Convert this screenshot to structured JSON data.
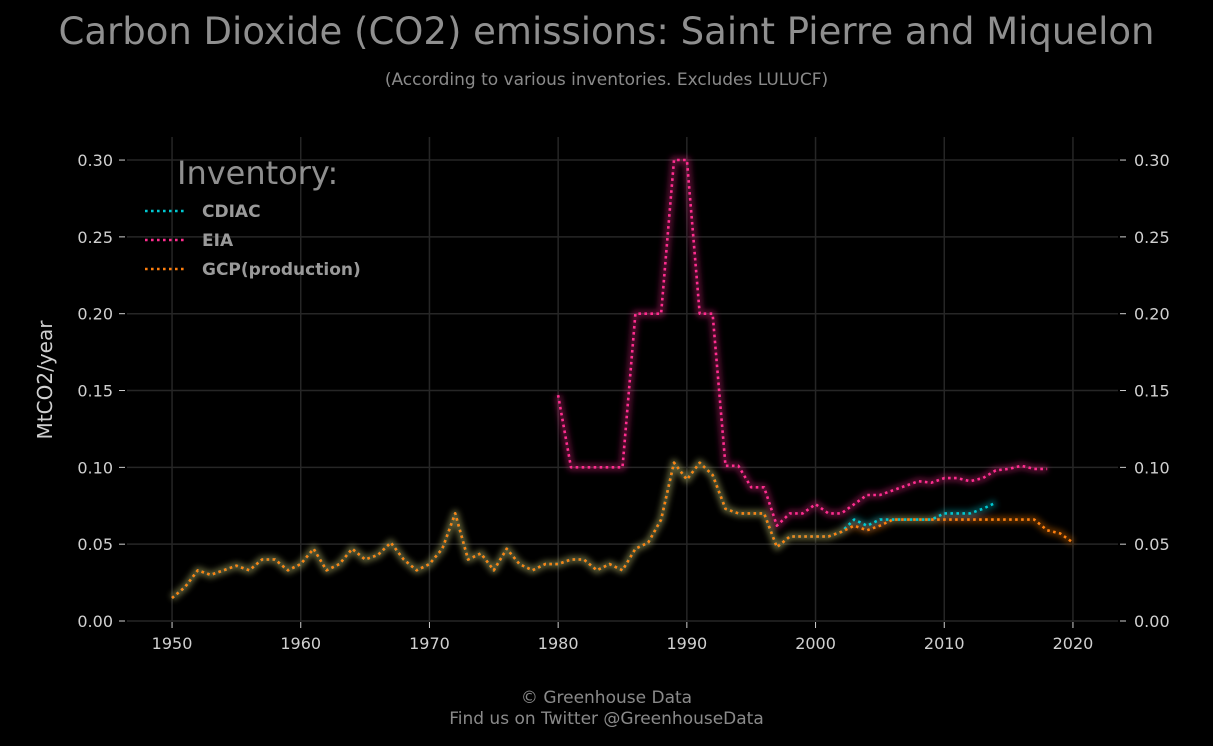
{
  "title": "Carbon Dioxide (CO2) emissions: Saint Pierre and Miquelon",
  "subtitle": "(According to various inventories. Excludes LULUCF)",
  "footer": {
    "line1": "© Greenhouse Data",
    "line2": "Find us on Twitter @GreenhouseData"
  },
  "colors": {
    "background": "#000000",
    "grid": "#262626",
    "text": "#d0d0d0",
    "muted": "#8a8a8a"
  },
  "chart_data": {
    "type": "line",
    "ylabel": "MtCO2/year",
    "xlabel": "",
    "xlim": [
      1946.5,
      2023.5
    ],
    "ylim": [
      0,
      0.315
    ],
    "xticks": [
      1950,
      1960,
      1970,
      1980,
      1990,
      2000,
      2010,
      2020
    ],
    "yticks": [
      0.0,
      0.05,
      0.1,
      0.15,
      0.2,
      0.25,
      0.3
    ],
    "ytick_labels": [
      "0.00",
      "0.05",
      "0.10",
      "0.15",
      "0.20",
      "0.25",
      "0.30"
    ],
    "grid": true,
    "legend": {
      "title": "Inventory:",
      "position": "top-left"
    },
    "series": [
      {
        "name": "CDIAC",
        "color": "#00c8d2",
        "x": [
          1950,
          1951,
          1952,
          1953,
          1954,
          1955,
          1956,
          1957,
          1958,
          1959,
          1960,
          1961,
          1962,
          1963,
          1964,
          1965,
          1966,
          1967,
          1968,
          1969,
          1970,
          1971,
          1972,
          1973,
          1974,
          1975,
          1976,
          1977,
          1978,
          1979,
          1980,
          1981,
          1982,
          1983,
          1984,
          1985,
          1986,
          1987,
          1988,
          1989,
          1990,
          1991,
          1992,
          1993,
          1994,
          1995,
          1996,
          1997,
          1998,
          1999,
          2000,
          2001,
          2002,
          2003,
          2004,
          2005,
          2006,
          2007,
          2008,
          2009,
          2010,
          2011,
          2012,
          2013,
          2014
        ],
        "y": [
          0.015,
          0.022,
          0.033,
          0.03,
          0.033,
          0.036,
          0.033,
          0.04,
          0.04,
          0.033,
          0.037,
          0.047,
          0.033,
          0.037,
          0.047,
          0.04,
          0.043,
          0.051,
          0.04,
          0.033,
          0.037,
          0.047,
          0.07,
          0.04,
          0.044,
          0.033,
          0.047,
          0.037,
          0.033,
          0.037,
          0.037,
          0.04,
          0.04,
          0.033,
          0.037,
          0.033,
          0.047,
          0.051,
          0.066,
          0.103,
          0.092,
          0.103,
          0.095,
          0.073,
          0.07,
          0.07,
          0.07,
          0.048,
          0.055,
          0.055,
          0.055,
          0.055,
          0.058,
          0.066,
          0.062,
          0.066,
          0.066,
          0.066,
          0.066,
          0.066,
          0.07,
          0.07,
          0.07,
          0.073,
          0.077
        ]
      },
      {
        "name": "EIA",
        "color": "#ff2d8f",
        "x": [
          1980,
          1981,
          1982,
          1983,
          1984,
          1985,
          1986,
          1987,
          1988,
          1989,
          1990,
          1991,
          1992,
          1993,
          1994,
          1995,
          1996,
          1997,
          1998,
          1999,
          2000,
          2001,
          2002,
          2003,
          2004,
          2005,
          2006,
          2007,
          2008,
          2009,
          2010,
          2011,
          2012,
          2013,
          2014,
          2015,
          2016,
          2017,
          2018
        ],
        "y": [
          0.147,
          0.1,
          0.1,
          0.1,
          0.1,
          0.1,
          0.2,
          0.2,
          0.2,
          0.3,
          0.3,
          0.2,
          0.2,
          0.101,
          0.101,
          0.087,
          0.087,
          0.062,
          0.07,
          0.07,
          0.076,
          0.07,
          0.07,
          0.076,
          0.082,
          0.082,
          0.085,
          0.088,
          0.091,
          0.09,
          0.093,
          0.093,
          0.091,
          0.093,
          0.098,
          0.099,
          0.101,
          0.099,
          0.099
        ]
      },
      {
        "name": "GCP(production)",
        "color": "#ff7f0e",
        "x": [
          1950,
          1951,
          1952,
          1953,
          1954,
          1955,
          1956,
          1957,
          1958,
          1959,
          1960,
          1961,
          1962,
          1963,
          1964,
          1965,
          1966,
          1967,
          1968,
          1969,
          1970,
          1971,
          1972,
          1973,
          1974,
          1975,
          1976,
          1977,
          1978,
          1979,
          1980,
          1981,
          1982,
          1983,
          1984,
          1985,
          1986,
          1987,
          1988,
          1989,
          1990,
          1991,
          1992,
          1993,
          1994,
          1995,
          1996,
          1997,
          1998,
          1999,
          2000,
          2001,
          2002,
          2003,
          2004,
          2005,
          2006,
          2007,
          2008,
          2009,
          2010,
          2011,
          2012,
          2013,
          2014,
          2015,
          2016,
          2017,
          2018,
          2019,
          2020
        ],
        "y": [
          0.015,
          0.022,
          0.033,
          0.03,
          0.033,
          0.036,
          0.033,
          0.04,
          0.04,
          0.033,
          0.037,
          0.047,
          0.033,
          0.037,
          0.047,
          0.04,
          0.043,
          0.051,
          0.04,
          0.033,
          0.037,
          0.047,
          0.07,
          0.04,
          0.044,
          0.033,
          0.047,
          0.037,
          0.033,
          0.037,
          0.037,
          0.04,
          0.04,
          0.033,
          0.037,
          0.033,
          0.047,
          0.051,
          0.066,
          0.103,
          0.092,
          0.103,
          0.095,
          0.073,
          0.07,
          0.07,
          0.07,
          0.048,
          0.055,
          0.055,
          0.055,
          0.055,
          0.058,
          0.062,
          0.059,
          0.062,
          0.066,
          0.066,
          0.066,
          0.066,
          0.066,
          0.066,
          0.066,
          0.066,
          0.066,
          0.066,
          0.066,
          0.066,
          0.059,
          0.057,
          0.051
        ]
      }
    ]
  }
}
